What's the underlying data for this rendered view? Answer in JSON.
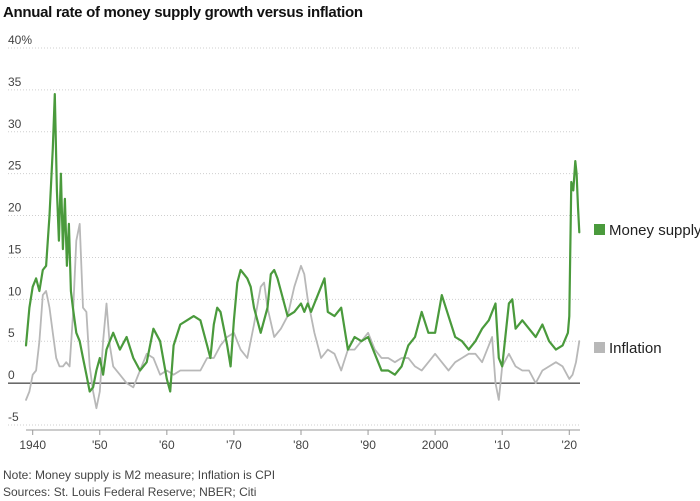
{
  "title": "Annual rate of money supply growth versus inflation",
  "notes": {
    "note": "Note: Money supply is M2 measure; Inflation is CPI",
    "sources": "Sources: St. Louis Federal Reserve; NBER; Citi"
  },
  "chart_data": {
    "type": "line",
    "title": "Annual rate of money supply growth versus inflation",
    "xlabel": "",
    "ylabel": "",
    "xlim": [
      1939.0,
      2021.6
    ],
    "ylim": [
      -5,
      40
    ],
    "y_ticks": [
      -5,
      0,
      5,
      10,
      15,
      20,
      25,
      30,
      35,
      40
    ],
    "y_tick_labels": [
      "-5",
      "0",
      "5",
      "10",
      "15",
      "20",
      "25",
      "30",
      "35",
      "40%"
    ],
    "x_ticks": [
      1940,
      1950,
      1960,
      1970,
      1980,
      1990,
      2000,
      2010,
      2020
    ],
    "x_tick_labels": [
      "1940",
      "'50",
      "'60",
      "'70",
      "'80",
      "'90",
      "2000",
      "'10",
      "'20"
    ],
    "grid": "horizontal dotted",
    "legend": "right, end of lines",
    "series": [
      {
        "name": "Money supply",
        "color": "#4a9a3c",
        "x": [
          1939.0,
          1939.5,
          1940.0,
          1940.5,
          1941.0,
          1941.5,
          1942.0,
          1942.5,
          1943.0,
          1943.3,
          1943.6,
          1943.9,
          1944.2,
          1944.5,
          1944.8,
          1945.1,
          1945.4,
          1945.7,
          1946.0,
          1946.5,
          1947.0,
          1947.5,
          1948.0,
          1948.5,
          1949.0,
          1949.5,
          1950.0,
          1950.5,
          1951.0,
          1951.5,
          1952.0,
          1953.0,
          1954.0,
          1955.0,
          1956.0,
          1957.0,
          1958.0,
          1959.0,
          1960.0,
          1960.5,
          1961.0,
          1962.0,
          1963.0,
          1964.0,
          1965.0,
          1966.0,
          1966.5,
          1967.0,
          1967.5,
          1968.0,
          1969.0,
          1969.5,
          1970.0,
          1970.5,
          1971.0,
          1971.5,
          1972.0,
          1972.5,
          1973.0,
          1974.0,
          1975.0,
          1975.5,
          1976.0,
          1976.5,
          1977.0,
          1978.0,
          1979.0,
          1980.0,
          1980.5,
          1981.0,
          1981.5,
          1982.0,
          1983.0,
          1983.5,
          1984.0,
          1985.0,
          1986.0,
          1987.0,
          1988.0,
          1989.0,
          1990.0,
          1991.0,
          1992.0,
          1993.0,
          1994.0,
          1995.0,
          1996.0,
          1997.0,
          1998.0,
          1999.0,
          2000.0,
          2001.0,
          2002.0,
          2003.0,
          2004.0,
          2005.0,
          2006.0,
          2007.0,
          2008.0,
          2009.0,
          2009.5,
          2010.0,
          2011.0,
          2011.5,
          2012.0,
          2013.0,
          2014.0,
          2015.0,
          2016.0,
          2017.0,
          2018.0,
          2019.0,
          2019.8,
          2020.0,
          2020.3,
          2020.6,
          2020.9,
          2021.1,
          2021.3,
          2021.5
        ],
        "y": [
          4.5,
          9.0,
          11.5,
          12.5,
          11.0,
          13.5,
          14.0,
          20.0,
          28.0,
          34.5,
          23.0,
          17.0,
          25.0,
          16.0,
          22.0,
          14.0,
          19.0,
          11.0,
          9.0,
          6.0,
          5.0,
          3.0,
          1.0,
          -1.0,
          -0.5,
          1.5,
          3.0,
          1.0,
          4.0,
          5.0,
          6.0,
          4.0,
          5.5,
          3.0,
          1.5,
          2.5,
          6.5,
          5.0,
          0.5,
          -1.0,
          4.5,
          7.0,
          7.5,
          8.0,
          7.5,
          4.5,
          3.0,
          7.0,
          9.0,
          8.5,
          4.5,
          2.0,
          7.5,
          12.0,
          13.5,
          13.0,
          12.5,
          11.5,
          9.0,
          6.0,
          9.0,
          13.0,
          13.5,
          12.5,
          11.0,
          8.0,
          8.5,
          9.5,
          8.5,
          9.5,
          8.5,
          9.5,
          11.5,
          12.5,
          8.5,
          8.0,
          9.0,
          4.0,
          5.5,
          5.0,
          5.5,
          3.5,
          1.5,
          1.5,
          1.0,
          2.0,
          4.5,
          5.5,
          8.5,
          6.0,
          6.0,
          10.5,
          8.0,
          5.5,
          5.0,
          4.0,
          5.0,
          6.5,
          7.5,
          9.5,
          3.0,
          2.0,
          9.5,
          10.0,
          6.5,
          7.5,
          6.5,
          5.5,
          7.0,
          5.0,
          4.0,
          4.5,
          6.0,
          8.0,
          24.0,
          23.0,
          26.5,
          25.0,
          21.0,
          18.0
        ]
      },
      {
        "name": "Inflation",
        "color": "#b8b8b8",
        "x": [
          1939.0,
          1939.5,
          1940.0,
          1940.5,
          1941.0,
          1941.5,
          1942.0,
          1942.5,
          1943.0,
          1943.5,
          1944.0,
          1944.5,
          1945.0,
          1945.5,
          1946.0,
          1946.5,
          1947.0,
          1947.5,
          1948.0,
          1948.5,
          1949.0,
          1949.5,
          1950.0,
          1950.5,
          1951.0,
          1951.5,
          1952.0,
          1953.0,
          1954.0,
          1955.0,
          1956.0,
          1957.0,
          1958.0,
          1959.0,
          1960.0,
          1961.0,
          1962.0,
          1963.0,
          1964.0,
          1965.0,
          1966.0,
          1967.0,
          1968.0,
          1969.0,
          1970.0,
          1971.0,
          1972.0,
          1973.0,
          1974.0,
          1974.5,
          1975.0,
          1976.0,
          1977.0,
          1978.0,
          1979.0,
          1980.0,
          1980.5,
          1981.0,
          1982.0,
          1983.0,
          1984.0,
          1985.0,
          1986.0,
          1987.0,
          1988.0,
          1989.0,
          1990.0,
          1991.0,
          1992.0,
          1993.0,
          1994.0,
          1995.0,
          1996.0,
          1997.0,
          1998.0,
          1999.0,
          2000.0,
          2001.0,
          2002.0,
          2003.0,
          2004.0,
          2005.0,
          2006.0,
          2007.0,
          2008.0,
          2008.5,
          2009.0,
          2009.5,
          2010.0,
          2011.0,
          2012.0,
          2013.0,
          2014.0,
          2015.0,
          2016.0,
          2017.0,
          2018.0,
          2019.0,
          2020.0,
          2020.5,
          2021.0,
          2021.5
        ],
        "y": [
          -2.0,
          -1.0,
          1.0,
          1.5,
          5.0,
          10.5,
          11.0,
          9.0,
          6.0,
          3.0,
          2.0,
          2.0,
          2.5,
          2.0,
          8.0,
          17.0,
          19.0,
          9.0,
          8.5,
          2.0,
          -1.0,
          -3.0,
          -1.0,
          5.0,
          9.5,
          4.5,
          2.0,
          1.0,
          0.0,
          -0.5,
          1.5,
          3.5,
          3.0,
          1.0,
          1.5,
          1.0,
          1.5,
          1.5,
          1.5,
          1.5,
          3.0,
          3.0,
          4.5,
          5.5,
          6.0,
          4.0,
          3.0,
          7.0,
          11.5,
          12.0,
          9.0,
          5.5,
          6.5,
          8.0,
          11.5,
          14.0,
          13.0,
          10.0,
          6.0,
          3.0,
          4.0,
          3.5,
          1.5,
          4.0,
          4.0,
          5.0,
          6.0,
          4.0,
          3.0,
          3.0,
          2.5,
          3.0,
          3.0,
          2.0,
          1.5,
          2.5,
          3.5,
          2.5,
          1.5,
          2.5,
          3.0,
          3.5,
          3.5,
          2.5,
          4.5,
          5.5,
          0.0,
          -2.0,
          2.0,
          3.5,
          2.0,
          1.5,
          1.5,
          0.0,
          1.5,
          2.0,
          2.5,
          2.0,
          0.5,
          1.0,
          2.5,
          5.0
        ]
      }
    ]
  }
}
